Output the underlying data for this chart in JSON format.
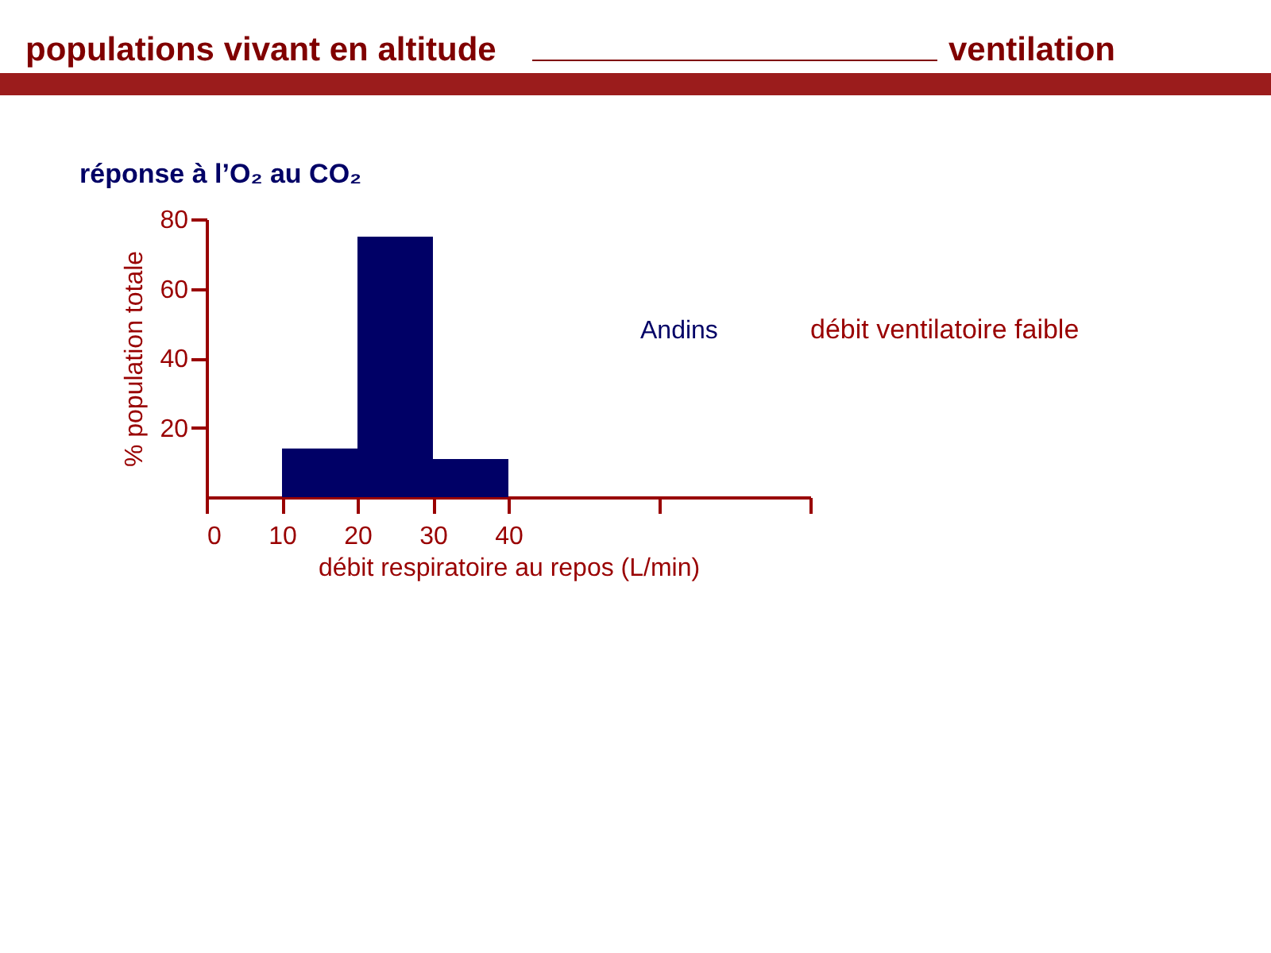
{
  "chart_data": {
    "type": "histogram",
    "title": "populations vivant en altitude",
    "subtitle": "réponse à l’O₂ au CO₂",
    "xlabel": "débit respiratoire au repos (L/min)",
    "ylabel": "% population totale",
    "bins": [
      10,
      20,
      30,
      40
    ],
    "values": [
      14,
      75,
      11
    ],
    "color": "#000066",
    "xlim": [
      0,
      80
    ],
    "xticks": [
      0,
      10,
      20,
      30,
      40,
      {
        "value": 60,
        "label": null
      },
      {
        "value": 80,
        "label": null
      }
    ],
    "ylim": [
      0,
      80
    ],
    "yticks": [
      20,
      40,
      60,
      80
    ],
    "grid": false,
    "annotations": [
      "ventilation",
      "Andins",
      "débit ventilatoire faible"
    ]
  }
}
